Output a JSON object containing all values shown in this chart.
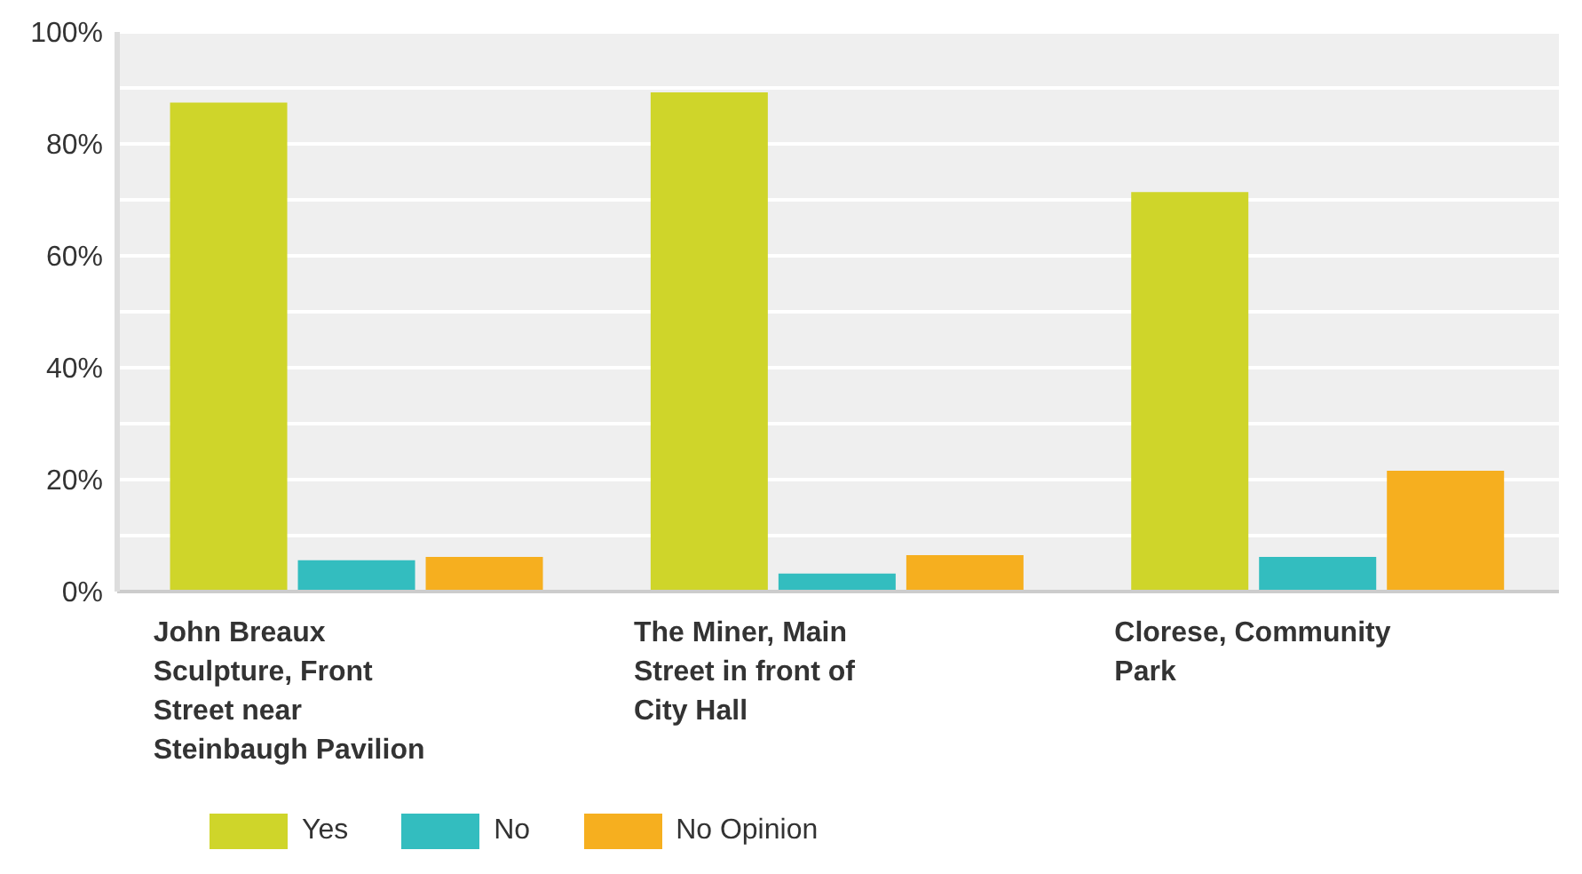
{
  "chart_data": {
    "type": "bar",
    "categories": [
      "John Breaux Sculpture, Front Street near Steinbaugh Pavilion",
      "The Miner, Main Street in front of City Hall",
      "Clorese, Community Park"
    ],
    "series": [
      {
        "name": "Yes",
        "color": "#cfd52a",
        "values": [
          87.4,
          89.2,
          71.4
        ]
      },
      {
        "name": "No",
        "color": "#33bdbf",
        "values": [
          5.6,
          3.2,
          6.2
        ]
      },
      {
        "name": "No Opinion",
        "color": "#f6af1f",
        "values": [
          6.2,
          6.5,
          21.6
        ]
      }
    ],
    "ylim": [
      0,
      100
    ],
    "yticks": [
      {
        "value": 0,
        "label": "0%"
      },
      {
        "value": 10,
        "label": null
      },
      {
        "value": 20,
        "label": "20%"
      },
      {
        "value": 30,
        "label": null
      },
      {
        "value": 40,
        "label": "40%"
      },
      {
        "value": 50,
        "label": null
      },
      {
        "value": 60,
        "label": "60%"
      },
      {
        "value": 70,
        "label": null
      },
      {
        "value": 80,
        "label": "80%"
      },
      {
        "value": 90,
        "label": null
      },
      {
        "value": 100,
        "label": "100%"
      }
    ],
    "grid": "y",
    "legend": "bottom left"
  }
}
